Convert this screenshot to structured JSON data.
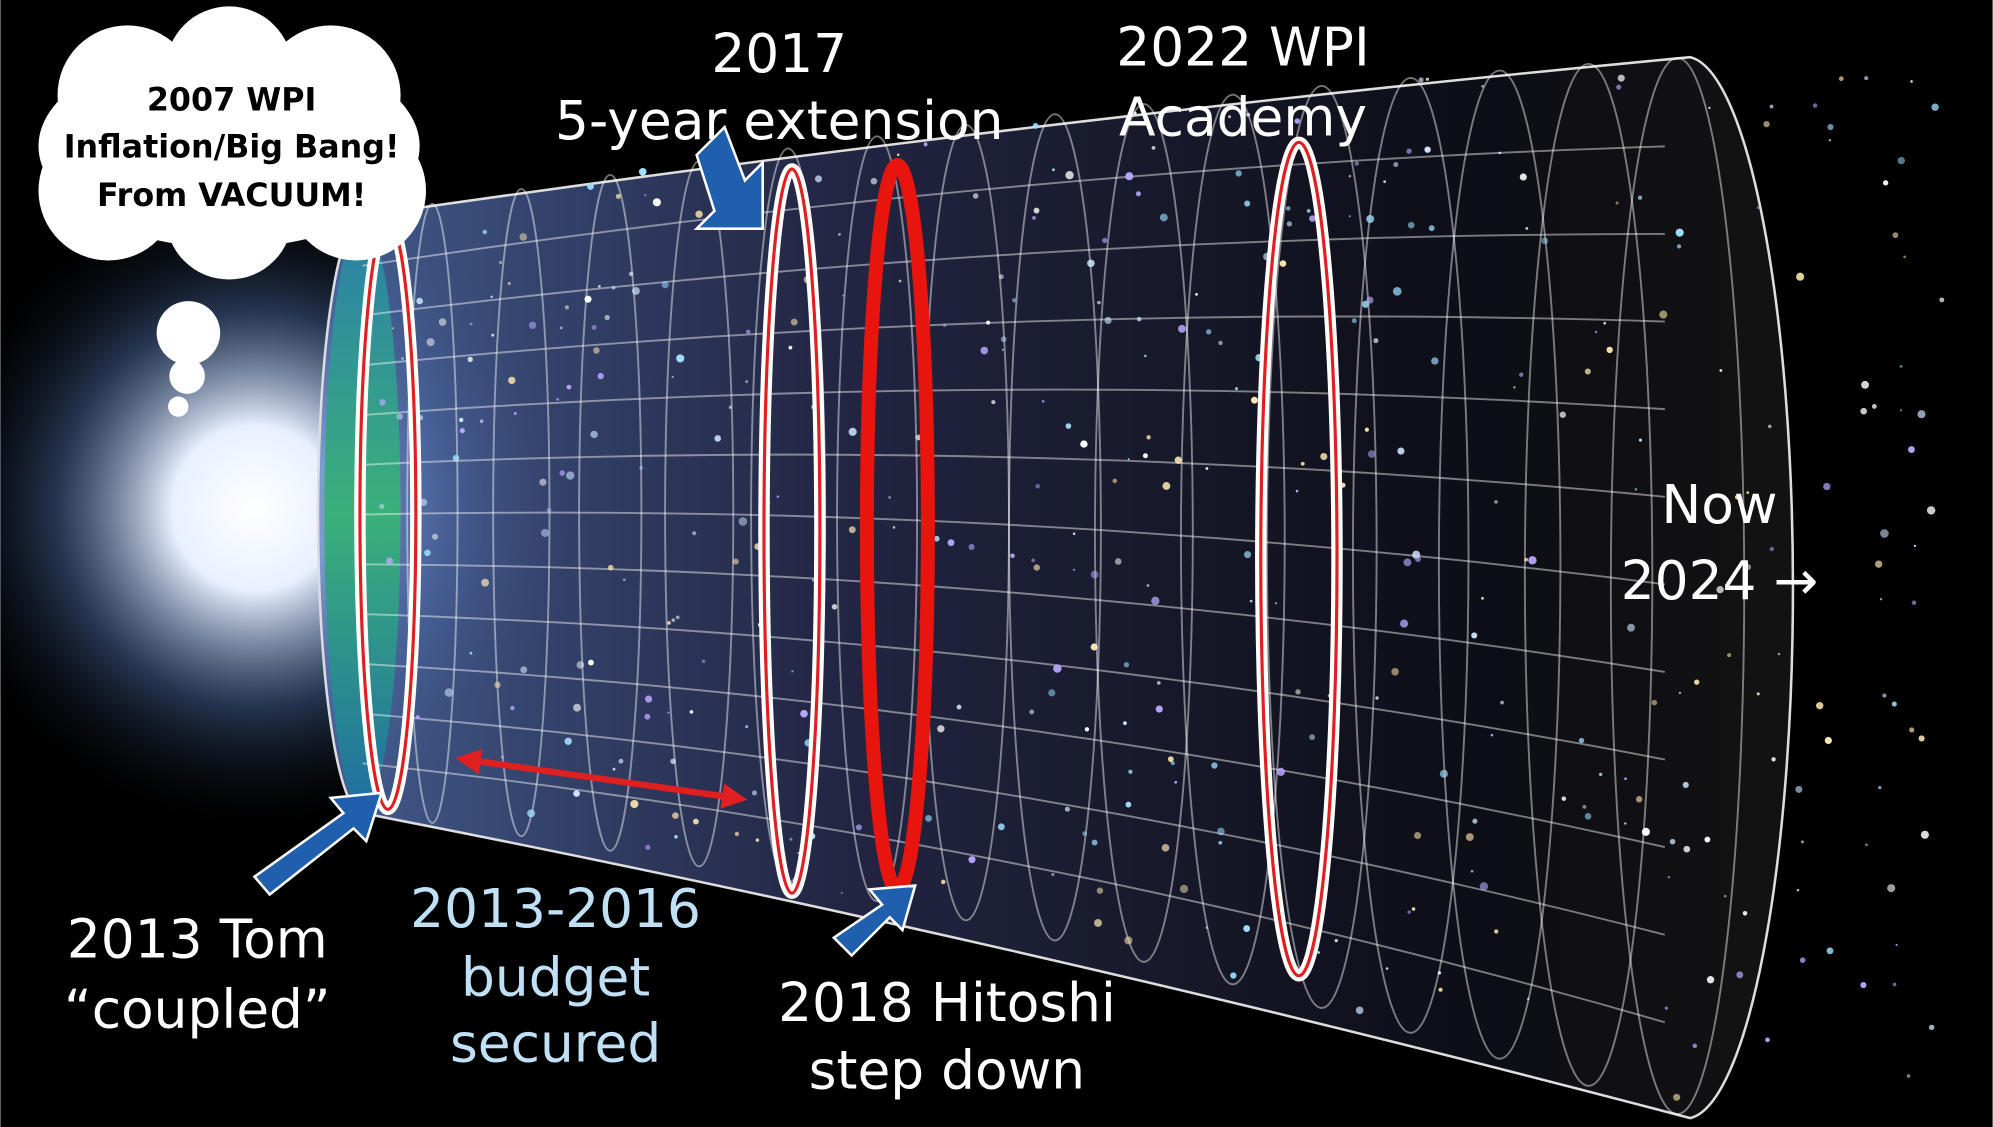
{
  "annotations": [
    {
      "lines": [
        "2007 WPI",
        "Inflation/Big Bang!",
        "From VACUUM!"
      ]
    },
    {
      "lines": [
        "2017",
        "5-year extension"
      ]
    },
    {
      "lines": [
        "2022 WPI",
        "Academy"
      ]
    },
    {
      "lines": [
        "Now",
        "2024 →"
      ]
    },
    {
      "lines": [
        "2013 Tom",
        "“coupled”"
      ]
    },
    {
      "lines": [
        "2013-2016",
        "budget",
        "secured"
      ]
    },
    {
      "lines": [
        "2018 Hitoshi",
        "step down"
      ]
    }
  ]
}
